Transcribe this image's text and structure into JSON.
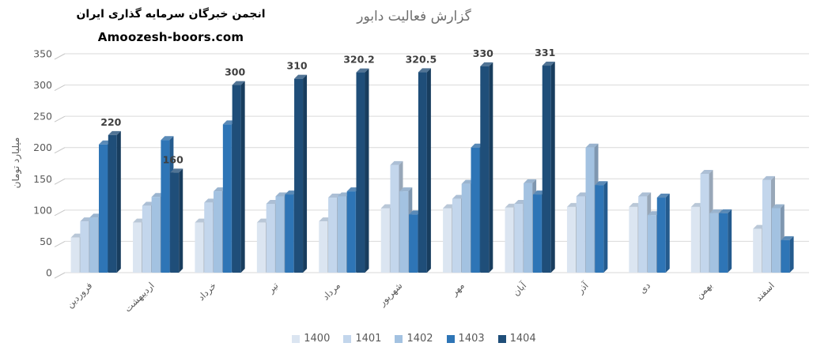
{
  "header": {
    "org_name": "انجمن خبرگان سرمایه گذاری ایران",
    "website": "Amoozesh-boors.com"
  },
  "chart_data": {
    "type": "bar",
    "style": "3d-clustered-column",
    "title": "گزارش فعالیت دابور",
    "ylabel": "میلیارد تومان",
    "xlabel": "",
    "ylim": [
      0,
      350
    ],
    "ytick_step": 50,
    "ytick_labels": [
      "0",
      "50",
      "100",
      "150",
      "200",
      "250",
      "300",
      "350"
    ],
    "grid": true,
    "legend_position": "bottom",
    "categories": [
      "فروردین",
      "اردیبهشت",
      "خرداد",
      "تیر",
      "مرداد",
      "شهریور",
      "مهر",
      "آبان",
      "آذر",
      "دی",
      "بهمن",
      "اسفند"
    ],
    "series": [
      {
        "name": "1400",
        "color": "#dbe5f1",
        "values": [
          56,
          80,
          80,
          80,
          82,
          103,
          103,
          104,
          105,
          105,
          105,
          70
        ]
      },
      {
        "name": "1401",
        "color": "#c3d6ec",
        "values": [
          82,
          107,
          112,
          110,
          120,
          172,
          118,
          110,
          122,
          122,
          158,
          148
        ]
      },
      {
        "name": "1402",
        "color": "#a3c2e1",
        "values": [
          88,
          121,
          130,
          122,
          122,
          130,
          142,
          143,
          200,
          92,
          95,
          103
        ]
      },
      {
        "name": "1403",
        "color": "#2e75b6",
        "values": [
          205,
          212,
          237,
          125,
          130,
          93,
          200,
          125,
          140,
          120,
          95,
          52
        ]
      },
      {
        "name": "1404",
        "color": "#1f4e79",
        "values": [
          220,
          160,
          300,
          310,
          320.2,
          320.5,
          330,
          331,
          null,
          null,
          null,
          null
        ]
      }
    ],
    "data_labels": [
      "220",
      "160",
      "300",
      "310",
      "320.2",
      "320.5",
      "330",
      "331"
    ],
    "data_labels_series": "1404"
  },
  "colors": {
    "grid": "#d9d9d9",
    "tick_diagonal": "#c6c6c6",
    "axis_text": "#595959",
    "title_text": "#6e6e6e",
    "data_label_text": "#3f3f3f"
  }
}
